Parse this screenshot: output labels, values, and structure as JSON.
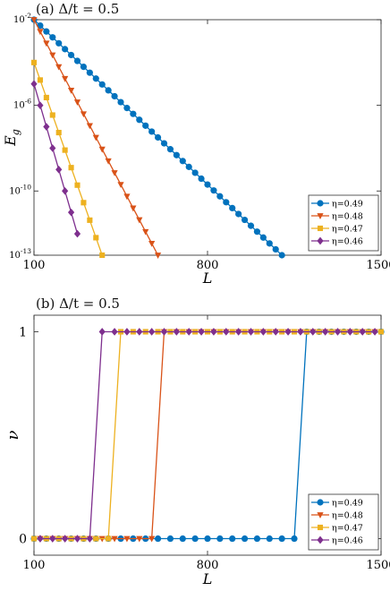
{
  "chart_data": [
    {
      "type": "line",
      "title": "(a) Δ/t = 0.5",
      "xlabel": "L",
      "ylabel": "E_g",
      "yscale": "log",
      "xlim": [
        100,
        1500
      ],
      "ylim": [
        1e-13,
        0.01
      ],
      "x_ticks": [
        "100",
        "800",
        "1500"
      ],
      "y_ticks": [
        "10^-2",
        "10^-6",
        "10^-10",
        "10^-13"
      ],
      "legend_position": "bottom-right",
      "series": [
        {
          "name": "η=0.49",
          "color": "#0072BD",
          "marker": "circle",
          "x_start": 100,
          "x_step": 25,
          "x_end": 1100,
          "y_start": 0.01,
          "y_end": 1e-13
        },
        {
          "name": "η=0.48",
          "color": "#D95319",
          "marker": "triangle-down",
          "x_start": 100,
          "x_step": 25,
          "x_end": 600,
          "y_start": 0.01,
          "y_end": 1e-13
        },
        {
          "name": "η=0.47",
          "color": "#EDB120",
          "marker": "square",
          "x_start": 100,
          "x_step": 25,
          "x_end": 375,
          "y_start": 0.0001,
          "y_end": 1e-13
        },
        {
          "name": "η=0.46",
          "color": "#7E2F8E",
          "marker": "diamond",
          "x_start": 100,
          "x_step": 25,
          "x_end": 275,
          "y_start": 1e-05,
          "y_end": 1e-12
        }
      ]
    },
    {
      "type": "line",
      "title": "(b) Δ/t = 0.5",
      "xlabel": "L",
      "ylabel": "ν",
      "xlim": [
        100,
        1500
      ],
      "ylim": [
        -0.08,
        1.08
      ],
      "x_ticks": [
        "100",
        "800",
        "1500"
      ],
      "y_ticks": [
        "0",
        "1"
      ],
      "legend_position": "bottom-right",
      "series": [
        {
          "name": "η=0.49",
          "color": "#0072BD",
          "marker": "circle",
          "x_start": 100,
          "x_step": 50,
          "x_end": 1500,
          "jump_from": 1150,
          "jump_to": 1200
        },
        {
          "name": "η=0.48",
          "color": "#D95319",
          "marker": "triangle-down",
          "x_start": 125,
          "x_step": 50,
          "x_end": 1475,
          "jump_from": 575,
          "jump_to": 625
        },
        {
          "name": "η=0.47",
          "color": "#EDB120",
          "marker": "square",
          "x_start": 100,
          "x_step": 50,
          "x_end": 1500,
          "jump_from": 400,
          "jump_to": 450
        },
        {
          "name": "η=0.46",
          "color": "#7E2F8E",
          "marker": "diamond",
          "x_start": 125,
          "x_step": 50,
          "x_end": 1475,
          "jump_from": 325,
          "jump_to": 375
        }
      ]
    }
  ]
}
